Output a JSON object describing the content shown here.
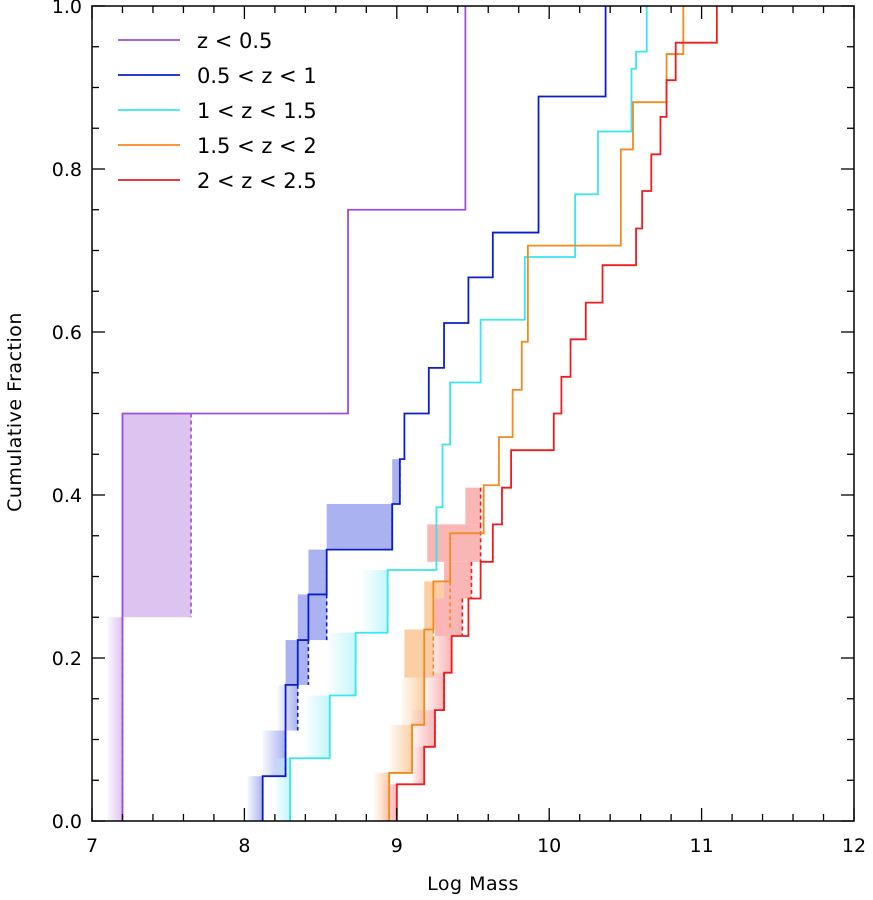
{
  "chart_data": {
    "type": "line",
    "step": true,
    "xlabel": "Log Mass",
    "ylabel": "Cumulative Fraction",
    "xlim": [
      7,
      12
    ],
    "ylim": [
      0,
      1
    ],
    "x_ticks": [
      7,
      8,
      9,
      10,
      11,
      12
    ],
    "x_tick_labels": [
      "7",
      "8",
      "9",
      "10",
      "11",
      "12"
    ],
    "y_ticks": [
      0,
      0.2,
      0.4,
      0.6,
      0.8,
      1.0
    ],
    "y_tick_labels": [
      "0.0",
      "0.2",
      "0.4",
      "0.6",
      "0.8",
      "1.0"
    ],
    "legend_position": "top-left",
    "series": [
      {
        "name": "z < 0.5",
        "color": "#9b4fd6",
        "fill": "#ddc3ef",
        "x": [
          7.2,
          7.2,
          8.68,
          9.45
        ],
        "y": [
          0.25,
          0.5,
          0.75,
          1.0
        ],
        "upper_limits": [
          {
            "x_lo": 7.1,
            "x_hi": 7.2,
            "y_lo": 0.0,
            "y_hi": 0.25,
            "solid": false
          },
          {
            "x_lo": 7.2,
            "x_hi": 7.65,
            "y_lo": 0.25,
            "y_hi": 0.5,
            "solid": true
          }
        ]
      },
      {
        "name": "0.5 < z < 1",
        "color": "#0a1fcc",
        "fill": "#aab2f2",
        "x": [
          8.12,
          8.27,
          8.35,
          8.42,
          8.54,
          8.97,
          9.02,
          9.05,
          9.21,
          9.31,
          9.47,
          9.63,
          9.93,
          10.37
        ],
        "y": [
          0.055,
          0.167,
          0.222,
          0.278,
          0.333,
          0.389,
          0.444,
          0.5,
          0.556,
          0.611,
          0.667,
          0.722,
          0.889,
          0.944
        ],
        "upper_limits": [
          {
            "x_lo": 8.02,
            "x_hi": 8.12,
            "y_lo": 0.0,
            "y_hi": 0.055,
            "solid": false
          },
          {
            "x_lo": 8.12,
            "x_hi": 8.27,
            "y_lo": 0.055,
            "y_hi": 0.111,
            "solid": false
          },
          {
            "x_lo": 8.22,
            "x_hi": 8.35,
            "y_lo": 0.111,
            "y_hi": 0.167,
            "solid": false
          },
          {
            "x_lo": 8.27,
            "x_hi": 8.42,
            "y_lo": 0.167,
            "y_hi": 0.222,
            "solid": true
          },
          {
            "x_lo": 8.35,
            "x_hi": 8.54,
            "y_lo": 0.222,
            "y_hi": 0.278,
            "solid": true
          },
          {
            "x_lo": 8.42,
            "x_hi": 8.54,
            "y_lo": 0.278,
            "y_hi": 0.333,
            "solid": true
          },
          {
            "x_lo": 8.54,
            "x_hi": 8.97,
            "y_lo": 0.333,
            "y_hi": 0.389,
            "solid": true
          },
          {
            "x_lo": 8.97,
            "x_hi": 9.02,
            "y_lo": 0.389,
            "y_hi": 0.444,
            "solid": true
          }
        ]
      },
      {
        "name": "1 < z < 1.5",
        "color": "#37e6f0",
        "fill": "#c4f6fa",
        "x": [
          8.3,
          8.56,
          8.73,
          8.94,
          9.26,
          9.3,
          9.35,
          9.55,
          9.84,
          10.17,
          10.32,
          10.54,
          10.57,
          10.64
        ],
        "y": [
          0.077,
          0.154,
          0.231,
          0.308,
          0.385,
          0.462,
          0.538,
          0.615,
          0.692,
          0.769,
          0.846,
          0.923,
          0.944,
          1.0
        ],
        "upper_limits": [
          {
            "x_lo": 8.2,
            "x_hi": 8.3,
            "y_lo": 0.0,
            "y_hi": 0.077,
            "solid": false
          },
          {
            "x_lo": 8.4,
            "x_hi": 8.56,
            "y_lo": 0.077,
            "y_hi": 0.154,
            "solid": false
          },
          {
            "x_lo": 8.55,
            "x_hi": 8.73,
            "y_lo": 0.154,
            "y_hi": 0.231,
            "solid": false
          },
          {
            "x_lo": 8.78,
            "x_hi": 8.94,
            "y_lo": 0.231,
            "y_hi": 0.308,
            "solid": false
          }
        ]
      },
      {
        "name": "1.5 < z < 2",
        "color": "#f5891e",
        "fill": "#fbcfa3",
        "x": [
          8.95,
          9.1,
          9.18,
          9.24,
          9.35,
          9.57,
          9.67,
          9.76,
          9.82,
          9.86,
          10.47,
          10.55,
          10.77,
          10.88
        ],
        "y": [
          0.059,
          0.118,
          0.235,
          0.294,
          0.353,
          0.412,
          0.471,
          0.529,
          0.588,
          0.706,
          0.824,
          0.882,
          0.941,
          1.0
        ],
        "upper_limits": [
          {
            "x_lo": 8.85,
            "x_hi": 8.95,
            "y_lo": 0.0,
            "y_hi": 0.059,
            "solid": false
          },
          {
            "x_lo": 8.95,
            "x_hi": 9.1,
            "y_lo": 0.059,
            "y_hi": 0.118,
            "solid": false
          },
          {
            "x_lo": 9.03,
            "x_hi": 9.18,
            "y_lo": 0.118,
            "y_hi": 0.176,
            "solid": false
          },
          {
            "x_lo": 9.05,
            "x_hi": 9.24,
            "y_lo": 0.176,
            "y_hi": 0.235,
            "solid": true
          },
          {
            "x_lo": 9.18,
            "x_hi": 9.35,
            "y_lo": 0.235,
            "y_hi": 0.294,
            "solid": true
          }
        ]
      },
      {
        "name": "2 < z < 2.5",
        "color": "#ee1c1c",
        "fill": "#fab5b5",
        "x": [
          9.0,
          9.18,
          9.25,
          9.31,
          9.36,
          9.47,
          9.55,
          9.63,
          9.69,
          9.75,
          10.03,
          10.08,
          10.14,
          10.24,
          10.35,
          10.57,
          10.61,
          10.67,
          10.73,
          10.77,
          10.83,
          11.1
        ],
        "y": [
          0.045,
          0.091,
          0.136,
          0.182,
          0.227,
          0.273,
          0.318,
          0.364,
          0.409,
          0.455,
          0.5,
          0.545,
          0.591,
          0.636,
          0.682,
          0.727,
          0.773,
          0.818,
          0.864,
          0.909,
          0.955,
          1.0
        ],
        "upper_limits": [
          {
            "x_lo": 8.9,
            "x_hi": 9.0,
            "y_lo": 0.0,
            "y_hi": 0.045,
            "solid": false
          },
          {
            "x_lo": 9.1,
            "x_hi": 9.18,
            "y_lo": 0.045,
            "y_hi": 0.091,
            "solid": false
          },
          {
            "x_lo": 9.1,
            "x_hi": 9.25,
            "y_lo": 0.091,
            "y_hi": 0.136,
            "solid": false
          },
          {
            "x_lo": 9.18,
            "x_hi": 9.31,
            "y_lo": 0.136,
            "y_hi": 0.182,
            "solid": false
          },
          {
            "x_lo": 9.2,
            "x_hi": 9.36,
            "y_lo": 0.182,
            "y_hi": 0.227,
            "solid": false
          },
          {
            "x_lo": 9.25,
            "x_hi": 9.43,
            "y_lo": 0.227,
            "y_hi": 0.273,
            "solid": true
          },
          {
            "x_lo": 9.31,
            "x_hi": 9.49,
            "y_lo": 0.273,
            "y_hi": 0.318,
            "solid": true
          },
          {
            "x_lo": 9.2,
            "x_hi": 9.55,
            "y_lo": 0.318,
            "y_hi": 0.364,
            "solid": true
          },
          {
            "x_lo": 9.45,
            "x_hi": 9.55,
            "y_lo": 0.364,
            "y_hi": 0.409,
            "solid": true
          }
        ]
      }
    ]
  }
}
